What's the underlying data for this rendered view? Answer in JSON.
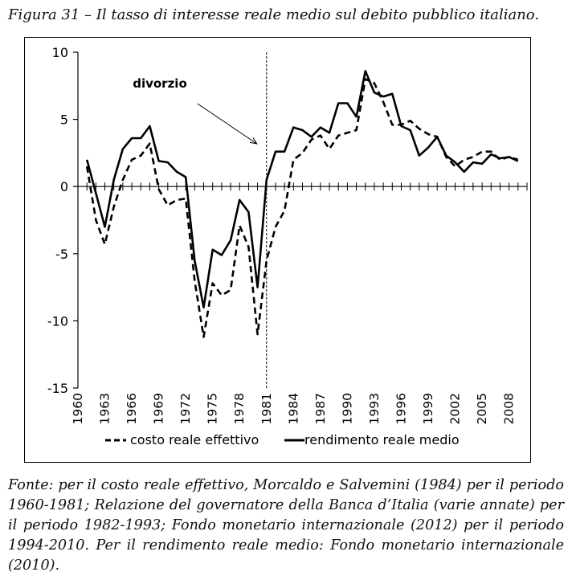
{
  "caption": "Figura 31 – Il tasso di interesse reale medio sul debito pubblico italiano.",
  "source": "Fonte: per il costo reale effettivo, Morcaldo e Salvemini (1984) per il periodo 1960-1981; Relazione del governatore della Banca d’Italia (varie annate) per il periodo 1982-1993; Fondo monetario internazionale (2012) per il periodo 1994-2010. Per il rendimento reale medio: Fondo monetario internazionale (2010).",
  "chart_data": {
    "type": "line",
    "title": "",
    "xlabel": "",
    "ylabel": "",
    "xlim": [
      1960,
      2010
    ],
    "ylim": [
      -15,
      10
    ],
    "y_ticks": [
      10,
      5,
      0,
      -5,
      -10,
      -15
    ],
    "x_tick_labels": [
      "1960",
      "1963",
      "1966",
      "1969",
      "1972",
      "1975",
      "1978",
      "1981",
      "1984",
      "1987",
      "1990",
      "1993",
      "1996",
      "1999",
      "2002",
      "2005",
      "2008"
    ],
    "grid": false,
    "legend_position": "bottom",
    "annotation": {
      "text": "divorzio",
      "year": 1981
    },
    "x": [
      1961,
      1962,
      1963,
      1964,
      1965,
      1966,
      1967,
      1968,
      1969,
      1970,
      1971,
      1972,
      1973,
      1974,
      1975,
      1976,
      1977,
      1978,
      1979,
      1980,
      1981,
      1982,
      1983,
      1984,
      1985,
      1986,
      1987,
      1988,
      1989,
      1990,
      1991,
      1992,
      1993,
      1994,
      1995,
      1996,
      1997,
      1998,
      1999,
      2000,
      2001,
      2002,
      2003,
      2004,
      2005,
      2006,
      2007,
      2008,
      2009
    ],
    "series": [
      {
        "name": "costo reale effettivo",
        "style": "dashed",
        "values": [
          1.5,
          -2.5,
          -4.3,
          -1.5,
          0.5,
          2.0,
          2.3,
          3.2,
          -0.2,
          -1.4,
          -1.0,
          -0.9,
          -7.0,
          -11.2,
          -7.2,
          -8.1,
          -7.7,
          -2.9,
          -4.5,
          -11.0,
          -5.5,
          -3.0,
          -1.8,
          2.0,
          2.5,
          3.5,
          3.8,
          2.8,
          3.8,
          4.0,
          4.2,
          8.0,
          7.7,
          6.3,
          4.6,
          4.6,
          4.9,
          4.3,
          3.9,
          3.7,
          2.2,
          1.5,
          2.0,
          2.2,
          2.6,
          2.6,
          2.0,
          2.2,
          2.0
        ]
      },
      {
        "name": "rendimento reale medio",
        "style": "solid",
        "values": [
          2.0,
          -0.5,
          -3.0,
          0.5,
          2.8,
          3.6,
          3.6,
          4.5,
          1.9,
          1.8,
          1.1,
          0.7,
          -5.5,
          -9.0,
          -4.7,
          -5.1,
          -4.0,
          -1.0,
          -1.9,
          -7.5,
          0.5,
          2.6,
          2.6,
          4.4,
          4.2,
          3.7,
          4.4,
          4.0,
          6.2,
          6.2,
          5.2,
          8.6,
          7.0,
          6.7,
          6.9,
          4.5,
          4.2,
          2.3,
          2.9,
          3.7,
          2.3,
          1.8,
          1.1,
          1.8,
          1.7,
          2.4,
          2.1,
          2.2,
          1.9
        ]
      }
    ]
  }
}
